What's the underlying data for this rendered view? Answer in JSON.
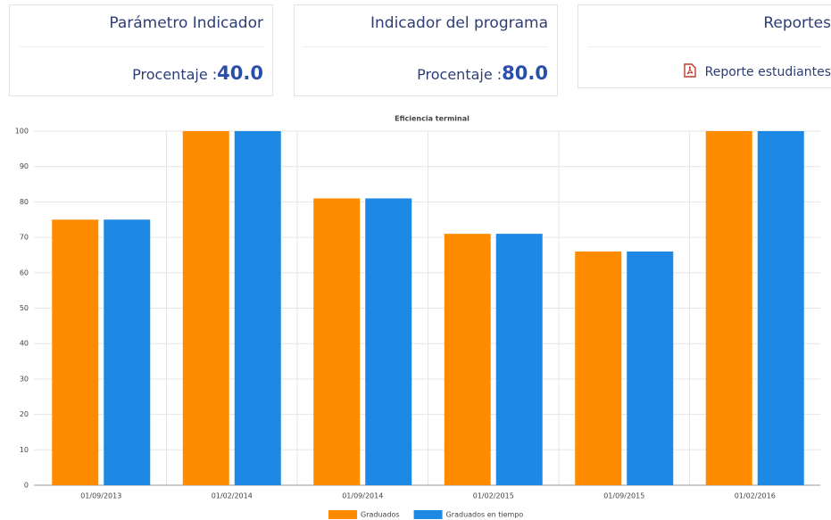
{
  "cards": [
    {
      "title": "Parámetro Indicador",
      "label": "Procentaje :",
      "value": "40.0"
    },
    {
      "title": "Indicador del programa",
      "label": "Procentaje :",
      "value": "80.0"
    },
    {
      "title": "Reportes",
      "link": "Reporte estudiantes"
    }
  ],
  "chart_data": {
    "type": "bar",
    "title": "Eficiencia terminal",
    "categories": [
      "01/09/2013",
      "01/02/2014",
      "01/09/2014",
      "01/02/2015",
      "01/09/2015",
      "01/02/2016"
    ],
    "series": [
      {
        "name": "Graduados",
        "color": "#ff8c00",
        "values": [
          75,
          100,
          81,
          71,
          66,
          100
        ]
      },
      {
        "name": "Graduados en tiempo",
        "color": "#1e88e5",
        "values": [
          75,
          100,
          81,
          71,
          66,
          100
        ]
      }
    ],
    "ylim": [
      0,
      100
    ],
    "yticks": [
      0,
      10,
      20,
      30,
      40,
      50,
      60,
      70,
      80,
      90,
      100
    ],
    "grid": true,
    "legend": "bottom"
  }
}
